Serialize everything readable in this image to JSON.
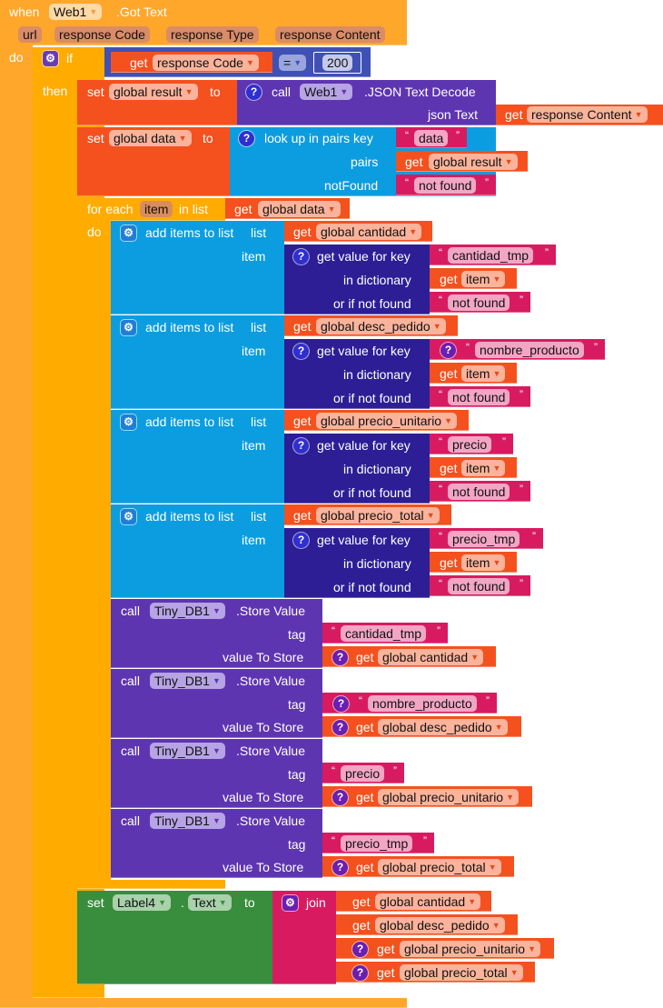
{
  "event": {
    "when": "when",
    "component": "Web1",
    "event": ".Got Text",
    "params": [
      "url",
      "response Code",
      "response Type",
      "response Content"
    ],
    "do": "do"
  },
  "if_block": {
    "if": "if",
    "then": "then",
    "get": "get",
    "var": "response Code",
    "op": "=",
    "value": "200"
  },
  "set_result": {
    "set": "set",
    "var": "global result",
    "to": "to",
    "call": "call",
    "component": "Web1",
    "method": ".JSON Text Decode",
    "arg": "json Text",
    "get": "get",
    "get_var": "response Content"
  },
  "set_data": {
    "set": "set",
    "var": "global data",
    "to": "to",
    "lookup": "look up in pairs  key",
    "key": "data",
    "pairs": "pairs",
    "pairs_get": "get",
    "pairs_var": "global result",
    "notfound_label": "notFound",
    "notfound": "not found"
  },
  "foreach": {
    "for_each": "for each",
    "var": "item",
    "in_list": "in list",
    "get": "get",
    "list_var": "global data",
    "do": "do"
  },
  "add_items": [
    {
      "label": "add items to list",
      "list": "list",
      "get": "get",
      "list_var": "global cantidad",
      "item": "item",
      "getvalue": "get value for key",
      "key": "cantidad_tmp",
      "in_dict": "in dictionary",
      "dict_get": "get",
      "dict_var": "item",
      "or_not": "or if not found",
      "notfound": "not found"
    },
    {
      "label": "add items to list",
      "list": "list",
      "get": "get",
      "list_var": "global desc_pedido",
      "item": "item",
      "getvalue": "get value for key",
      "key": "nombre_producto",
      "in_dict": "in dictionary",
      "dict_get": "get",
      "dict_var": "item",
      "or_not": "or if not found",
      "notfound": "not found"
    },
    {
      "label": "add items to list",
      "list": "list",
      "get": "get",
      "list_var": "global precio_unitario",
      "item": "item",
      "getvalue": "get value for key",
      "key": "precio",
      "in_dict": "in dictionary",
      "dict_get": "get",
      "dict_var": "item",
      "or_not": "or if not found",
      "notfound": "not found"
    },
    {
      "label": "add items to list",
      "list": "list",
      "get": "get",
      "list_var": "global precio_total",
      "item": "item",
      "getvalue": "get value for key",
      "key": "precio_tmp",
      "in_dict": "in dictionary",
      "dict_get": "get",
      "dict_var": "item",
      "or_not": "or if not found",
      "notfound": "not found"
    }
  ],
  "store": [
    {
      "call": "call",
      "component": "Tiny_DB1",
      "method": ".Store Value",
      "tag_label": "tag",
      "tag": "cantidad_tmp",
      "value_label": "value To Store",
      "get": "get",
      "var": "global cantidad"
    },
    {
      "call": "call",
      "component": "Tiny_DB1",
      "method": ".Store Value",
      "tag_label": "tag",
      "tag": "nombre_producto",
      "value_label": "value To Store",
      "get": "get",
      "var": "global desc_pedido"
    },
    {
      "call": "call",
      "component": "Tiny_DB1",
      "method": ".Store Value",
      "tag_label": "tag",
      "tag": "precio",
      "value_label": "value To Store",
      "get": "get",
      "var": "global precio_unitario"
    },
    {
      "call": "call",
      "component": "Tiny_DB1",
      "method": ".Store Value",
      "tag_label": "tag",
      "tag": "precio_tmp",
      "value_label": "value To Store",
      "get": "get",
      "var": "global precio_total"
    }
  ],
  "set_label": {
    "set": "set",
    "component": "Label4",
    "dot": ".",
    "prop": "Text",
    "to": "to",
    "join": "join",
    "items": [
      {
        "get": "get",
        "var": "global cantidad"
      },
      {
        "get": "get",
        "var": "global desc_pedido"
      },
      {
        "get": "get",
        "var": "global precio_unitario"
      },
      {
        "get": "get",
        "var": "global precio_total"
      }
    ]
  },
  "colors": {
    "event": "#FFA72B",
    "control": "#FFAB00",
    "logic": "#3F51B5",
    "variable": "#F4511E",
    "component": "#5E35B1",
    "dictionary": "#0B9DE0",
    "dictionary_dark": "#2D1E96",
    "text": "#D81B60",
    "setter": "#388E3C"
  }
}
